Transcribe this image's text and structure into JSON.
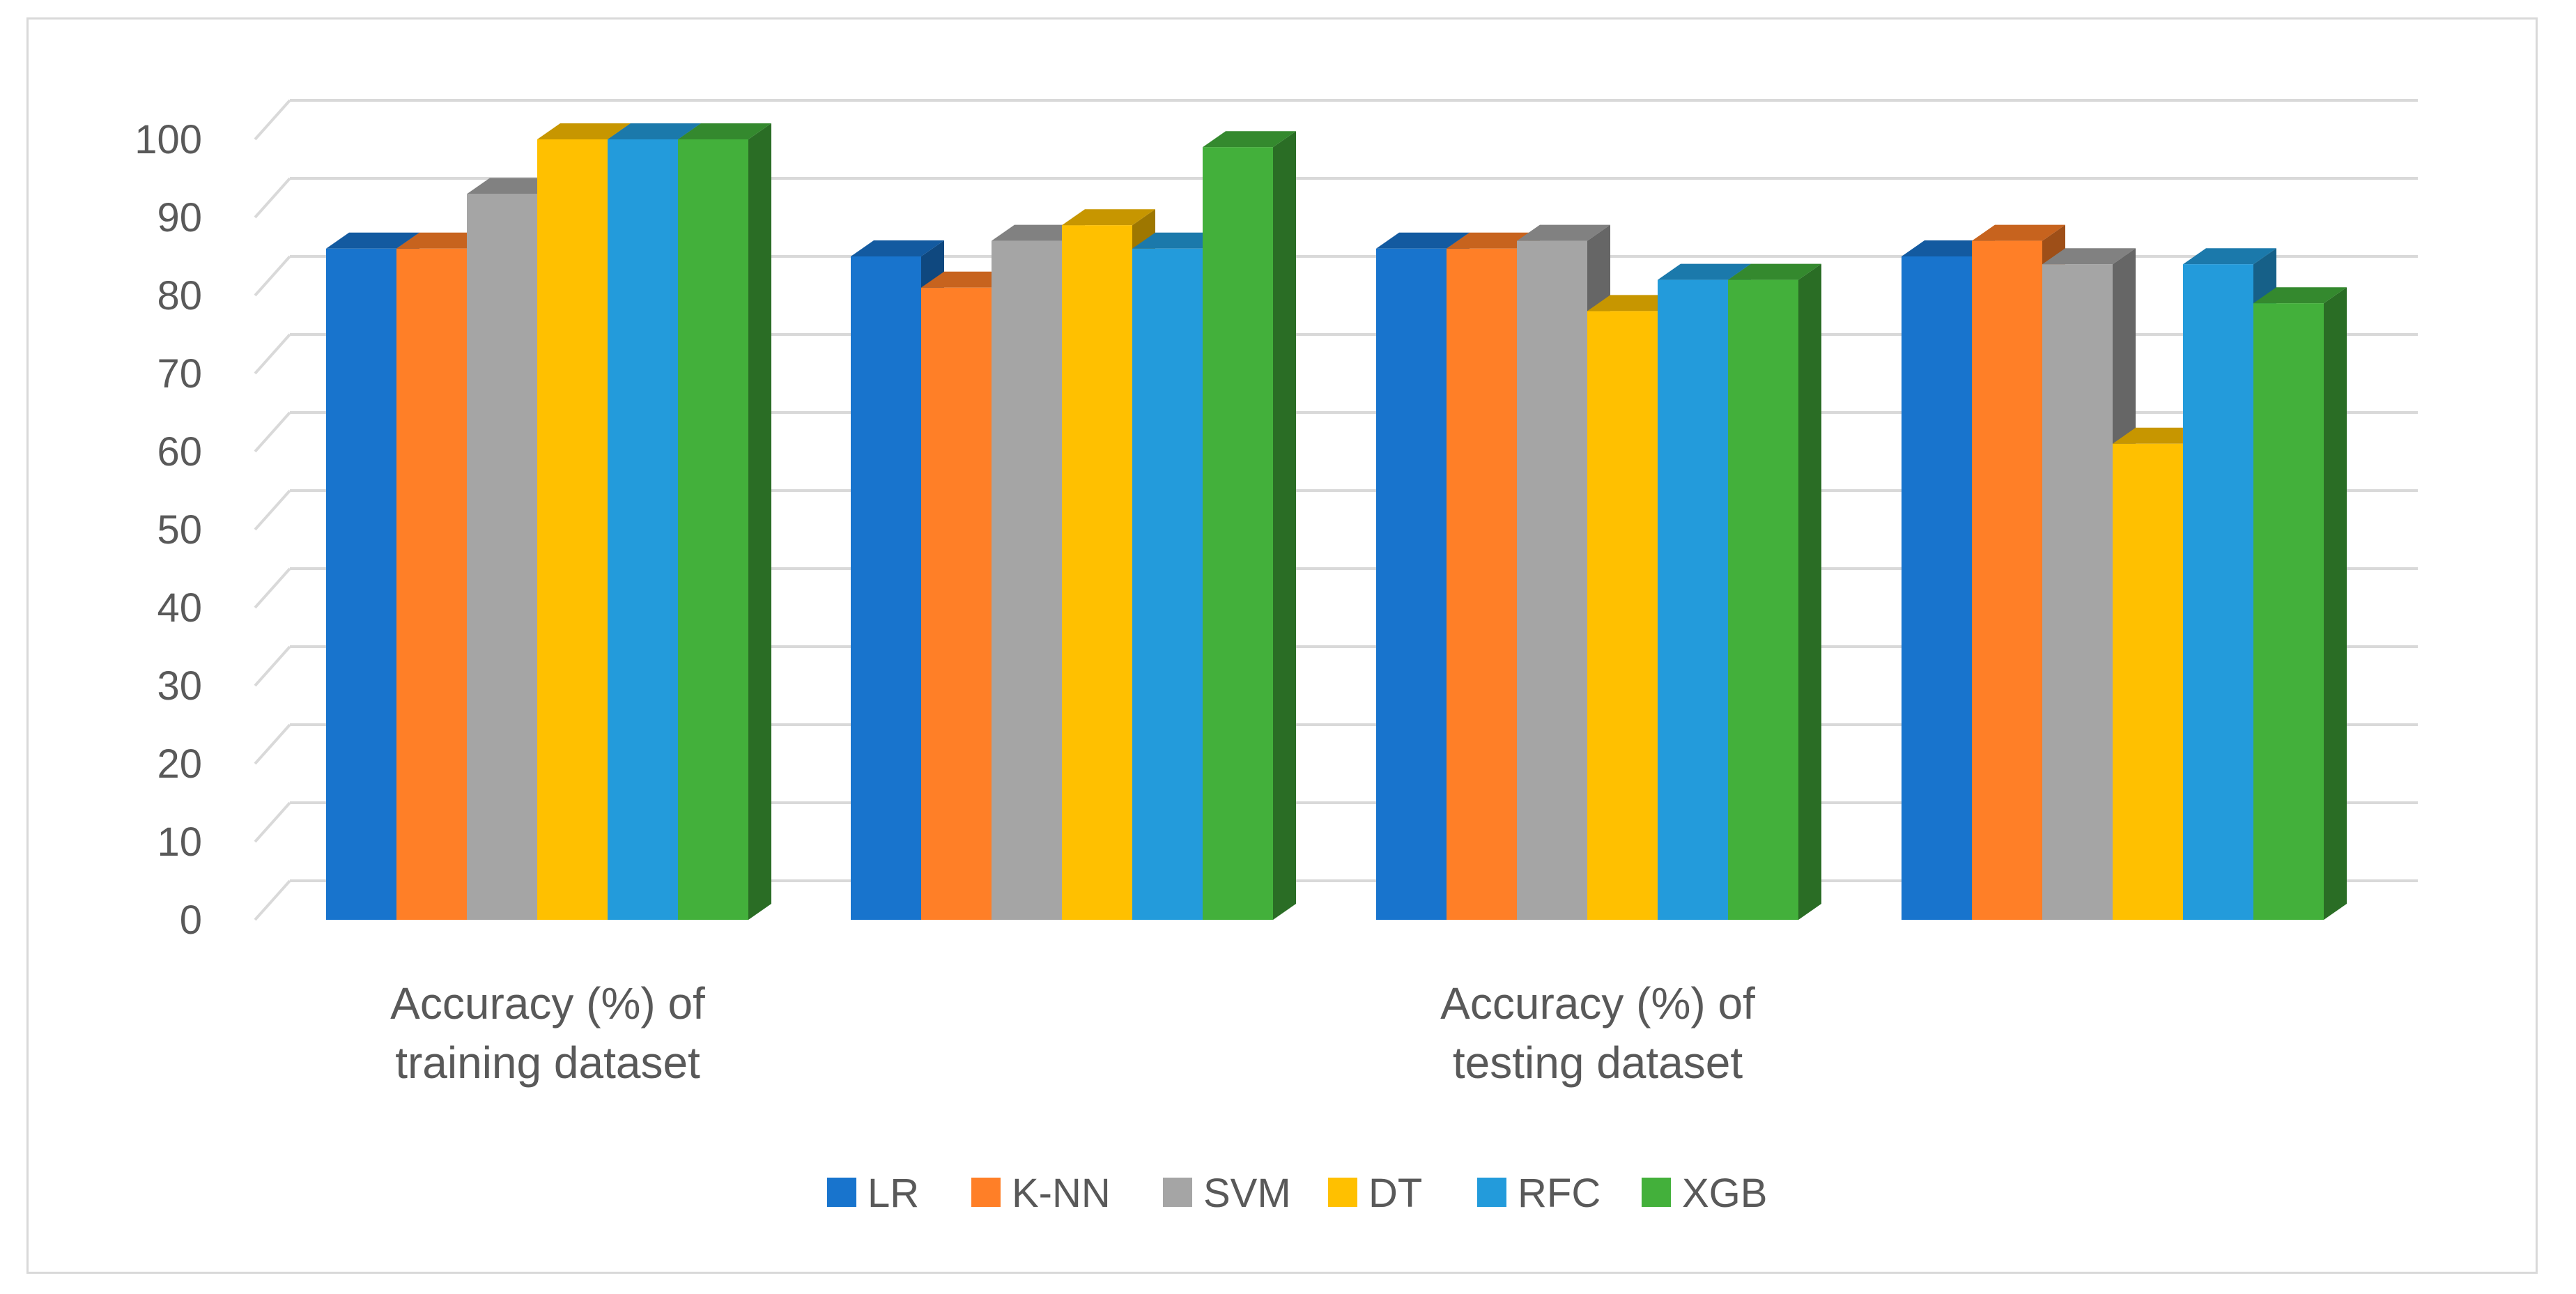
{
  "chart_data": {
    "type": "bar",
    "title": "",
    "xlabel": "",
    "ylabel": "",
    "ylim": [
      0,
      100
    ],
    "yticks": [
      0,
      10,
      20,
      30,
      40,
      50,
      60,
      70,
      80,
      90,
      100
    ],
    "grid": true,
    "legend_position": "bottom",
    "groups": [
      {
        "label_lines": [
          "Accuracy (%) of",
          "training dataset"
        ],
        "series_values": [
          86,
          86,
          93,
          100,
          100,
          100
        ]
      },
      {
        "label_lines": [],
        "series_values": [
          85,
          81,
          87,
          89,
          86,
          99
        ]
      },
      {
        "label_lines": [
          "Accuracy (%) of",
          "testing dataset"
        ],
        "series_values": [
          86,
          86,
          87,
          78,
          82,
          82
        ]
      },
      {
        "label_lines": [],
        "series_values": [
          85,
          87,
          84,
          61,
          84,
          79
        ]
      }
    ],
    "series": [
      {
        "name": "LR",
        "color": "#1874CD"
      },
      {
        "name": "K-NN",
        "color": "#FF7F27"
      },
      {
        "name": "SVM",
        "color": "#A5A5A5"
      },
      {
        "name": "DT",
        "color": "#FFC000"
      },
      {
        "name": "RFC",
        "color": "#239BDB"
      },
      {
        "name": "XGB",
        "color": "#43B03B"
      }
    ]
  }
}
